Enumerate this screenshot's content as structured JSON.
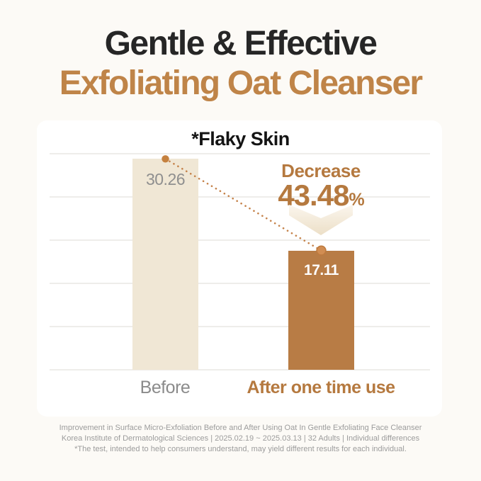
{
  "header": {
    "title_line1": "Gentle & Effective",
    "title_line2": "Exfoliating Oat Cleanser"
  },
  "chart_data": {
    "type": "bar",
    "title": "*Flaky Skin",
    "categories": [
      "Before",
      "After one time use"
    ],
    "values": [
      30.26,
      17.11
    ],
    "ylim": [
      0,
      31
    ],
    "gridlines": 6,
    "grid": "on",
    "legend_position": "none",
    "annotation": {
      "label": "Decrease",
      "value": "43.48",
      "unit": "%",
      "arrow_icon": "arrow-down-icon"
    },
    "connector": "dotted line from top of Before bar to top of After bar"
  },
  "footer": {
    "lines": [
      "Improvement in Surface Micro-Exfoliation Before and After Using Oat In Gentle Exfoliating Face Cleanser",
      "Korea Institute of Dermatological Sciences | 2025.02.19 ~ 2025.03.13 | 32 Adults | Individual differences",
      "*The test, intended to help consumers understand, may yield different results for each individual."
    ]
  },
  "colors": {
    "title_dark": "#262626",
    "title_accent": "#bf8448",
    "bar_before": "#f0e7d5",
    "bar_after": "#b87c45",
    "value_before_text": "#8f8f8f",
    "value_after_text": "#ffffff",
    "decrease_text": "#b5793f",
    "dotted_line": "#c5824a",
    "gridline": "#eeedea",
    "footer_text": "#9c9c9c",
    "panel_bg": "#ffffff",
    "page_bg": "#fcfaf6"
  }
}
